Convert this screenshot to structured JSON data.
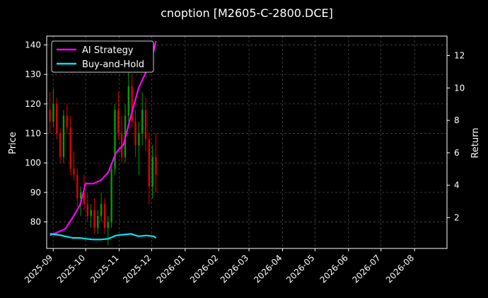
{
  "chart_data": {
    "type": "candlestick+line",
    "title": "cnoption [M2605-C-2800.DCE]",
    "ylabel_left": "Price",
    "ylabel_right": "Return",
    "ylim_left": [
      71,
      143
    ],
    "ylim_right": [
      0.1,
      13.2
    ],
    "x_ticks": [
      "2025-09",
      "2025-10",
      "2025-11",
      "2025-12",
      "2026-01",
      "2026-02",
      "2026-03",
      "2026-04",
      "2026-05",
      "2026-06",
      "2026-07",
      "2026-08"
    ],
    "y_ticks_left": [
      80,
      90,
      100,
      110,
      120,
      130,
      140
    ],
    "y_ticks_right": [
      2,
      4,
      6,
      8,
      10,
      12
    ],
    "grid": true,
    "legend_position": "top-left",
    "colors": {
      "background": "#000000",
      "up": "#00a000",
      "down": "#e00000",
      "ai_strategy": "#ff00ff",
      "buy_and_hold": "#00e5ee",
      "text": "#ffffff",
      "grid": "#555555"
    },
    "series": [
      {
        "name": "AI Strategy",
        "x": [
          "2025-08-29",
          "2025-09-05",
          "2025-09-12",
          "2025-09-19",
          "2025-09-26",
          "2025-10-01",
          "2025-10-08",
          "2025-10-15",
          "2025-10-22",
          "2025-10-29",
          "2025-11-05",
          "2025-11-12",
          "2025-11-19",
          "2025-11-26",
          "2025-12-03",
          "2025-12-05"
        ],
        "values": [
          0.9,
          1.1,
          1.3,
          2.0,
          2.8,
          4.1,
          4.1,
          4.3,
          4.8,
          6.0,
          6.5,
          8.3,
          10.0,
          11.0,
          12.3,
          12.9
        ]
      },
      {
        "name": "Buy-and-Hold",
        "x": [
          "2025-08-29",
          "2025-09-05",
          "2025-09-12",
          "2025-09-19",
          "2025-09-26",
          "2025-10-01",
          "2025-10-08",
          "2025-10-15",
          "2025-10-22",
          "2025-10-29",
          "2025-11-05",
          "2025-11-12",
          "2025-11-19",
          "2025-11-26",
          "2025-12-03",
          "2025-12-05"
        ],
        "values": [
          1.0,
          0.95,
          0.85,
          0.75,
          0.75,
          0.7,
          0.65,
          0.65,
          0.7,
          0.9,
          0.95,
          1.0,
          0.85,
          0.9,
          0.85,
          0.75
        ]
      }
    ],
    "candles": {
      "x_start": "2025-08-29",
      "x_end": "2025-12-05",
      "ohlc": [
        [
          118,
          124,
          110,
          114
        ],
        [
          114,
          125,
          112,
          120
        ],
        [
          120,
          122,
          108,
          110
        ],
        [
          110,
          112,
          100,
          102
        ],
        [
          102,
          118,
          100,
          116
        ],
        [
          116,
          120,
          110,
          112
        ],
        [
          112,
          116,
          96,
          98
        ],
        [
          98,
          104,
          94,
          96
        ],
        [
          96,
          98,
          85,
          88
        ],
        [
          88,
          92,
          82,
          90
        ],
        [
          90,
          96,
          84,
          86
        ],
        [
          86,
          90,
          80,
          82
        ],
        [
          82,
          86,
          78,
          84
        ],
        [
          84,
          88,
          76,
          78
        ],
        [
          78,
          84,
          76,
          82
        ],
        [
          82,
          90,
          80,
          86
        ],
        [
          86,
          88,
          76,
          78
        ],
        [
          78,
          82,
          72,
          80
        ],
        [
          80,
          100,
          78,
          98
        ],
        [
          98,
          120,
          96,
          118
        ],
        [
          118,
          124,
          108,
          110
        ],
        [
          110,
          116,
          100,
          102
        ],
        [
          102,
          120,
          100,
          116
        ],
        [
          116,
          132,
          114,
          126
        ],
        [
          126,
          130,
          112,
          114
        ],
        [
          114,
          118,
          102,
          106
        ],
        [
          106,
          114,
          96,
          110
        ],
        [
          110,
          124,
          106,
          118
        ],
        [
          118,
          122,
          104,
          108
        ],
        [
          108,
          110,
          86,
          92
        ],
        [
          92,
          106,
          88,
          102
        ],
        [
          102,
          110,
          90,
          96
        ]
      ]
    }
  }
}
